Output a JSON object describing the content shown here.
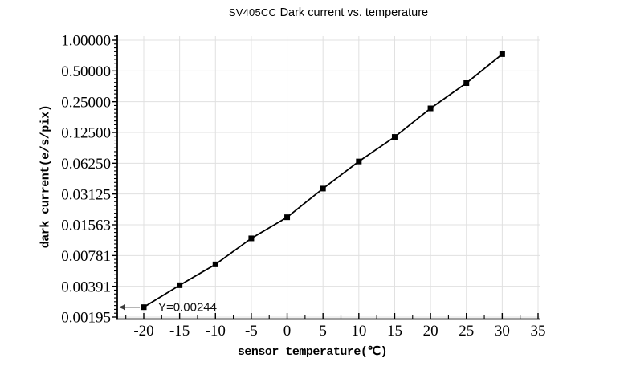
{
  "title": {
    "model": "SV405CC",
    "text": "Dark current vs. temperature"
  },
  "chart_data": {
    "type": "line",
    "title": "SV405CC Dark current vs. temperature",
    "xlabel": "sensor temperature(℃)",
    "ylabel": "dark current(e/s/pix)",
    "x": [
      -20,
      -15,
      -10,
      -5,
      0,
      5,
      10,
      15,
      20,
      25,
      30
    ],
    "y": [
      0.00244,
      0.004,
      0.0064,
      0.0115,
      0.0185,
      0.0353,
      0.065,
      0.113,
      0.215,
      0.38,
      0.73
    ],
    "x_ticks": [
      -20,
      -15,
      -10,
      -5,
      0,
      5,
      10,
      15,
      20,
      25,
      30,
      35
    ],
    "x_tick_labels": [
      "-20",
      "-15",
      "-10",
      "-5",
      "0",
      "5",
      "10",
      "15",
      "20",
      "25",
      "30",
      "35"
    ],
    "y_ticks": [
      1,
      0.5,
      0.25,
      0.125,
      0.0625,
      0.03125,
      0.015625,
      0.0078125,
      0.00390625,
      0.001953125
    ],
    "y_tick_labels": [
      "1.00000",
      "0.50000",
      "0.25000",
      "0.12500",
      "0.06250",
      "0.03125",
      "0.01563",
      "0.00781",
      "0.00391",
      "0.00195"
    ],
    "y_scale": "log2",
    "xlim": [
      -23.7,
      35.3
    ],
    "ylim": [
      0.00186,
      1.09
    ],
    "grid": true,
    "legend": false,
    "marker": "filled-square",
    "colors": {
      "line": "#000000",
      "marker": "#000000",
      "grid": "#e0e0e0",
      "axis": "#000000",
      "background": "#ffffff",
      "annotation_arrow": "#3a3a3a",
      "annotation_text": "#111111"
    },
    "annotation": {
      "text": "Y=0.00244",
      "x": -20,
      "y": 0.00244,
      "arrow_direction": "left"
    }
  }
}
